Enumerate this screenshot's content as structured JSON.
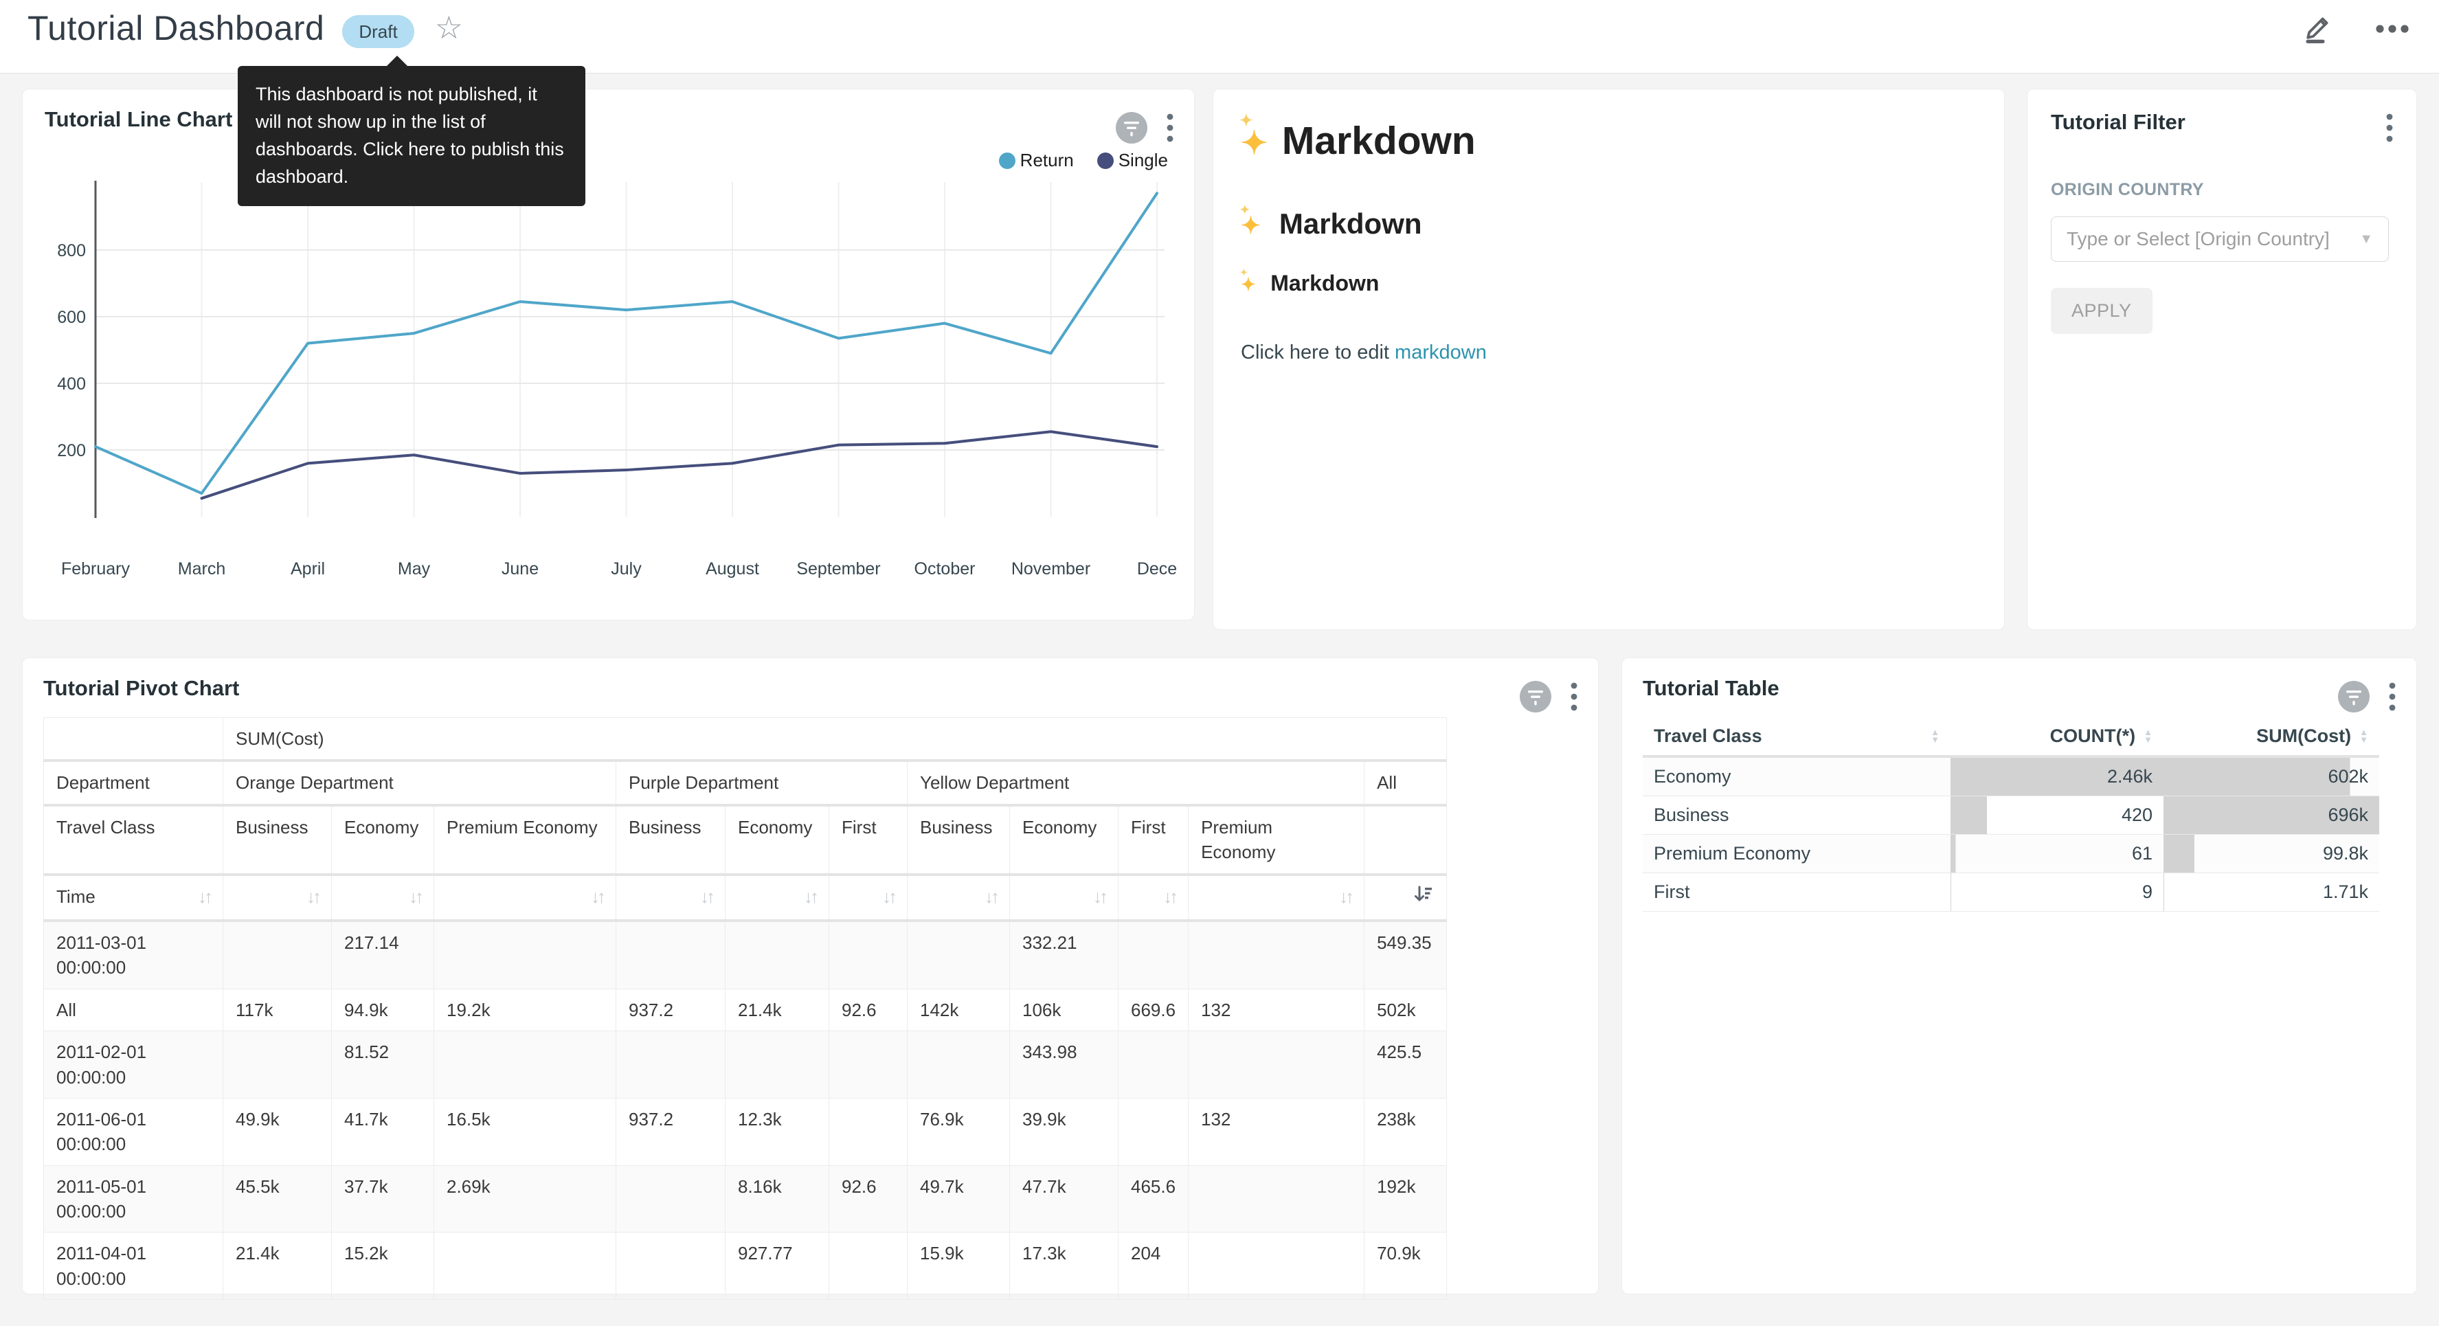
{
  "header": {
    "title": "Tutorial Dashboard",
    "status_badge": "Draft",
    "tooltip": "This dashboard is not published, it will not show up in the list of dashboards. Click here to publish this dashboard."
  },
  "colors": {
    "return_line": "#4FA6C9",
    "single_line": "#454E7C",
    "link": "#2C93AD",
    "draft_badge_bg": "#B3DDF2",
    "tooltip_bg": "#232323",
    "table_bar_fill": "#D2D2D2"
  },
  "chart_data": [
    {
      "type": "line",
      "title": "Tutorial Line Chart",
      "x": [
        "February",
        "March",
        "April",
        "May",
        "June",
        "July",
        "August",
        "September",
        "October",
        "November",
        "December"
      ],
      "x_tick_labels": [
        "February",
        "March",
        "April",
        "May",
        "June",
        "July",
        "August",
        "September",
        "October",
        "November",
        "Dece"
      ],
      "series": [
        {
          "name": "Return",
          "color": "#4FA6C9",
          "values": [
            210,
            70,
            520,
            550,
            645,
            620,
            645,
            535,
            580,
            490,
            970
          ]
        },
        {
          "name": "Single",
          "color": "#454E7C",
          "values": [
            null,
            55,
            160,
            185,
            130,
            140,
            160,
            215,
            220,
            255,
            210
          ]
        }
      ],
      "ylim": [
        0,
        1000
      ],
      "y_ticks": [
        200,
        400,
        600,
        800
      ],
      "grid": true,
      "legend_position": "top-right"
    },
    {
      "type": "table",
      "title": "Tutorial Pivot Chart",
      "metric": "SUM(Cost)",
      "row_header": "Department",
      "col_header": "Travel Class",
      "time_header": "Time",
      "groups": [
        {
          "label": "Orange Department",
          "columns": [
            "Business",
            "Economy",
            "Premium Economy"
          ]
        },
        {
          "label": "Purple Department",
          "columns": [
            "Business",
            "Economy",
            "First"
          ]
        },
        {
          "label": "Yellow Department",
          "columns": [
            "Business",
            "Economy",
            "First",
            "Premium Economy"
          ]
        },
        {
          "label": "All",
          "columns": [
            ""
          ]
        }
      ],
      "sorted_column": "All",
      "sort_direction": "descending",
      "rows": [
        [
          "2011-03-01 00:00:00",
          "",
          "217.14",
          "",
          "",
          "",
          "",
          "",
          "332.21",
          "",
          "",
          "549.35"
        ],
        [
          "All",
          "117k",
          "94.9k",
          "19.2k",
          "937.2",
          "21.4k",
          "92.6",
          "142k",
          "106k",
          "669.6",
          "132",
          "502k"
        ],
        [
          "2011-02-01 00:00:00",
          "",
          "81.52",
          "",
          "",
          "",
          "",
          "",
          "343.98",
          "",
          "",
          "425.5"
        ],
        [
          "2011-06-01 00:00:00",
          "49.9k",
          "41.7k",
          "16.5k",
          "937.2",
          "12.3k",
          "",
          "76.9k",
          "39.9k",
          "",
          "132",
          "238k"
        ],
        [
          "2011-05-01 00:00:00",
          "45.5k",
          "37.7k",
          "2.69k",
          "",
          "8.16k",
          "92.6",
          "49.7k",
          "47.7k",
          "465.6",
          "",
          "192k"
        ],
        [
          "2011-04-01 00:00:00",
          "21.4k",
          "15.2k",
          "",
          "",
          "927.77",
          "",
          "15.9k",
          "17.3k",
          "204",
          "",
          "70.9k"
        ]
      ]
    },
    {
      "type": "table",
      "title": "Tutorial Table",
      "columns": [
        "Travel Class",
        "COUNT(*)",
        "SUM(Cost)"
      ],
      "rows": [
        {
          "travel_class": "Economy",
          "count": "2.46k",
          "count_bar_pct": 100,
          "sum": "602k",
          "sum_bar_pct": 86.5
        },
        {
          "travel_class": "Business",
          "count": "420",
          "count_bar_pct": 17.1,
          "sum": "696k",
          "sum_bar_pct": 100
        },
        {
          "travel_class": "Premium Economy",
          "count": "61",
          "count_bar_pct": 2.5,
          "sum": "99.8k",
          "sum_bar_pct": 14.3
        },
        {
          "travel_class": "First",
          "count": "9",
          "count_bar_pct": 0.4,
          "sum": "1.71k",
          "sum_bar_pct": 0.25
        }
      ]
    }
  ],
  "markdown_card": {
    "icon": "sparkles-emoji",
    "h1": "Markdown",
    "h2": "Markdown",
    "h3": "Markdown",
    "paragraph": "Click here to edit ",
    "link_text": "markdown"
  },
  "filter_card": {
    "title": "Tutorial Filter",
    "field_label": "ORIGIN COUNTRY",
    "select_placeholder": "Type or Select [Origin Country]",
    "apply_label": "APPLY"
  }
}
